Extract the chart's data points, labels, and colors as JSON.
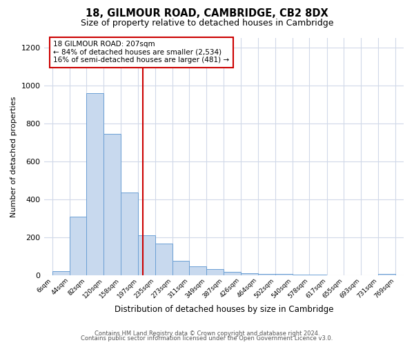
{
  "title1": "18, GILMOUR ROAD, CAMBRIDGE, CB2 8DX",
  "title2": "Size of property relative to detached houses in Cambridge",
  "xlabel": "Distribution of detached houses by size in Cambridge",
  "ylabel": "Number of detached properties",
  "bin_labels": [
    "6sqm",
    "44sqm",
    "82sqm",
    "120sqm",
    "158sqm",
    "197sqm",
    "235sqm",
    "273sqm",
    "311sqm",
    "349sqm",
    "387sqm",
    "426sqm",
    "464sqm",
    "502sqm",
    "540sqm",
    "578sqm",
    "617sqm",
    "655sqm",
    "693sqm",
    "731sqm",
    "769sqm"
  ],
  "bin_edges": [
    6,
    44,
    82,
    120,
    158,
    197,
    235,
    273,
    311,
    349,
    387,
    426,
    464,
    502,
    540,
    578,
    617,
    655,
    693,
    731,
    769
  ],
  "bar_heights": [
    20,
    310,
    960,
    745,
    435,
    210,
    165,
    75,
    48,
    33,
    18,
    10,
    7,
    5,
    4,
    3,
    0,
    0,
    0,
    8
  ],
  "bar_color": "#c8d9ee",
  "bar_edge_color": "#6b9fd4",
  "marker_value": 207,
  "marker_color": "#cc0000",
  "ylim": [
    0,
    1250
  ],
  "yticks": [
    0,
    200,
    400,
    600,
    800,
    1000,
    1200
  ],
  "annotation_title": "18 GILMOUR ROAD: 207sqm",
  "annotation_line1": "← 84% of detached houses are smaller (2,534)",
  "annotation_line2": "16% of semi-detached houses are larger (481) →",
  "annotation_box_color": "#ffffff",
  "annotation_box_edge": "#cc0000",
  "footer1": "Contains HM Land Registry data © Crown copyright and database right 2024.",
  "footer2": "Contains public sector information licensed under the Open Government Licence v3.0.",
  "bg_color": "#ffffff"
}
